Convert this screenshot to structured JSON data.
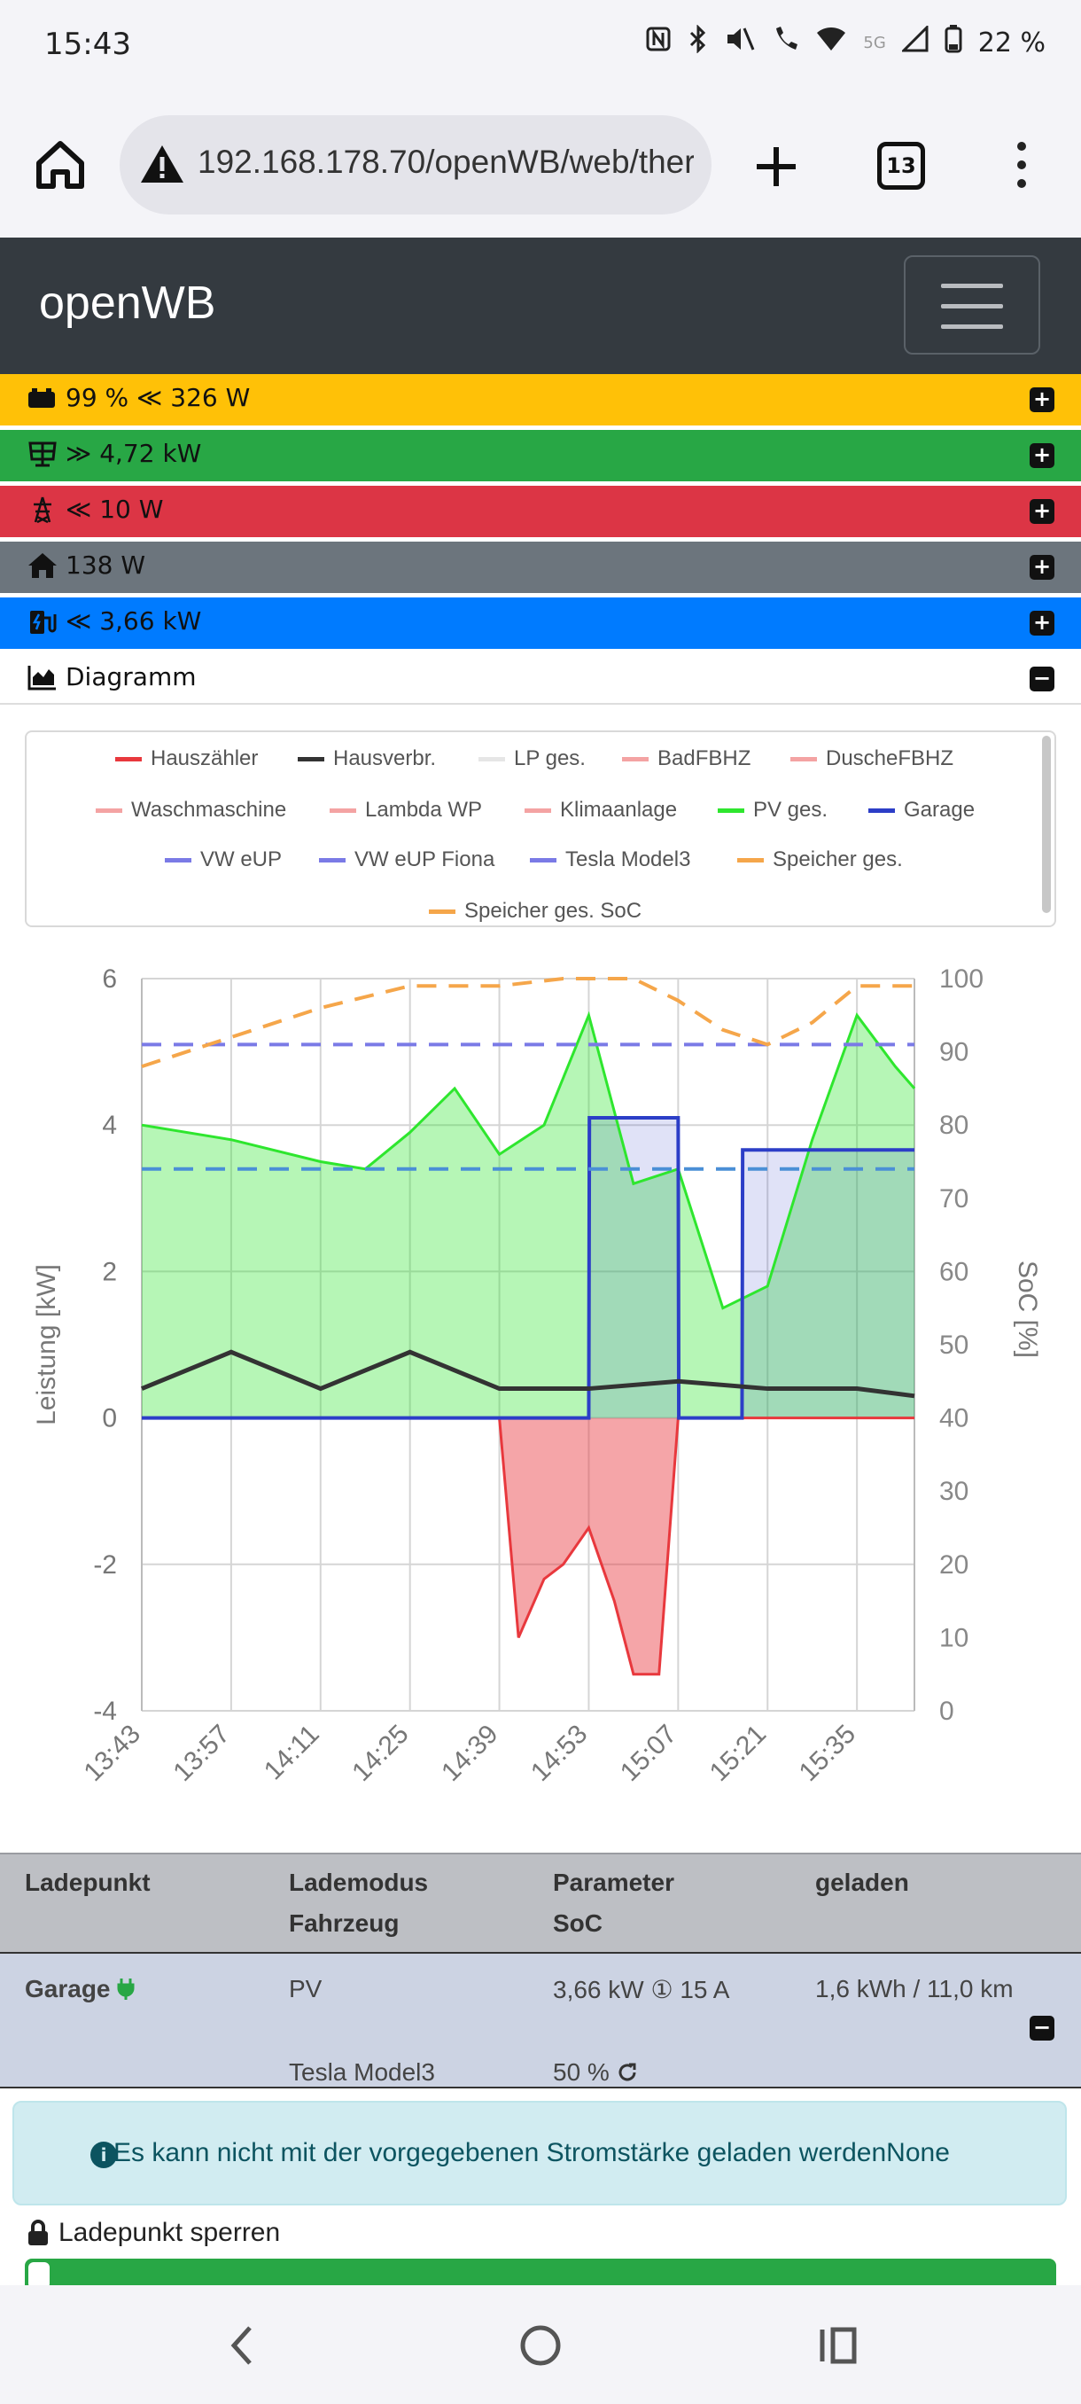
{
  "status_bar": {
    "time": "15:43",
    "network": "5G",
    "battery": "22 %"
  },
  "browser": {
    "url": "192.168.178.70/openWB/web/ther",
    "tab_count": "13"
  },
  "navbar": {
    "brand": "openWB"
  },
  "rows": [
    {
      "id": "battery",
      "text": "99 % ≪ 326 W",
      "color": "#ffc107",
      "icon": "battery-icon"
    },
    {
      "id": "pv",
      "text": "≫ 4,72 kW",
      "color": "#28a745",
      "icon": "solar-panel-icon"
    },
    {
      "id": "grid",
      "text": "≪ 10 W",
      "color": "#dc3545",
      "icon": "power-tower-icon"
    },
    {
      "id": "house",
      "text": "138 W",
      "color": "#6c757d",
      "icon": "home-icon"
    },
    {
      "id": "charge",
      "text": "≪ 3,66 kW",
      "color": "#007bff",
      "icon": "charging-station-icon"
    },
    {
      "id": "diagram",
      "text": "Diagramm",
      "color": "#ffffff",
      "icon": "chart-area-icon"
    }
  ],
  "chart_data": {
    "type": "area",
    "xlabel": "",
    "ylabel": "Leistung [kW]",
    "y2label": "SoC [%]",
    "ylim": [
      -4,
      6
    ],
    "y2lim": [
      0,
      100
    ],
    "x_ticks": [
      "13:43",
      "13:57",
      "14:11",
      "14:25",
      "14:39",
      "14:53",
      "15:07",
      "15:21",
      "15:35"
    ],
    "y_ticks": [
      "6",
      "4",
      "2",
      "0",
      "-2",
      "-4"
    ],
    "y2_ticks": [
      "100",
      "90",
      "80",
      "70",
      "60",
      "50",
      "40",
      "30",
      "20",
      "10",
      "0"
    ],
    "legend": [
      {
        "name": "Hauszähler",
        "color": "#e8383d"
      },
      {
        "name": "Hausverbr.",
        "color": "#333333"
      },
      {
        "name": "LP ges.",
        "color": "#e6e6e6"
      },
      {
        "name": "BadFBHZ",
        "color": "#f4a3a3"
      },
      {
        "name": "DuscheFBHZ",
        "color": "#f4a3a3"
      },
      {
        "name": "Waschmaschine",
        "color": "#f4a3a3"
      },
      {
        "name": "Lambda WP",
        "color": "#f4a3a3"
      },
      {
        "name": "Klimaanlage",
        "color": "#f4a3a3"
      },
      {
        "name": "PV ges.",
        "color": "#2ee62e"
      },
      {
        "name": "Garage",
        "color": "#2c3ec7"
      },
      {
        "name": "VW eUP",
        "color": "#7a7ae6"
      },
      {
        "name": "VW eUP Fiona",
        "color": "#7a7ae6"
      },
      {
        "name": "Tesla Model3",
        "color": "#7a7ae6"
      },
      {
        "name": "Speicher ges.",
        "color": "#f5a64a"
      },
      {
        "name": "Speicher ges. SoC",
        "color": "#f5a64a"
      }
    ],
    "series": [
      {
        "name": "PV ges.",
        "x": [
          0,
          14,
          28,
          35,
          42,
          49,
          56,
          63,
          70,
          77,
          84,
          91,
          98,
          105,
          112,
          118,
          121
        ],
        "values": [
          4.0,
          3.8,
          3.5,
          3.4,
          3.9,
          4.5,
          3.6,
          4.0,
          5.5,
          3.2,
          3.4,
          1.5,
          1.8,
          3.8,
          5.5,
          4.8,
          4.5
        ]
      },
      {
        "name": "Hauszähler",
        "x": [
          0,
          14,
          28,
          42,
          56,
          59,
          63,
          66,
          70,
          74,
          77,
          81,
          84,
          98,
          112,
          121
        ],
        "values": [
          0.0,
          0.0,
          0.0,
          0.0,
          0.0,
          -3.0,
          -2.2,
          -2.0,
          -1.5,
          -2.5,
          -3.5,
          -3.5,
          0.0,
          0.0,
          0.0,
          0.0
        ]
      },
      {
        "name": "Garage",
        "x": [
          0,
          70,
          70.1,
          84,
          84.1,
          94,
          94.1,
          121
        ],
        "values": [
          0.0,
          0.0,
          4.1,
          4.1,
          0.0,
          0.0,
          3.66,
          3.66
        ]
      },
      {
        "name": "Hausverbr.",
        "x": [
          0,
          14,
          28,
          42,
          56,
          70,
          84,
          98,
          112,
          121
        ],
        "values": [
          0.4,
          0.9,
          0.4,
          0.9,
          0.4,
          0.4,
          0.5,
          0.4,
          0.4,
          0.3
        ]
      },
      {
        "name": "Speicher ges. SoC",
        "x": [
          0,
          14,
          28,
          42,
          56,
          66,
          70,
          77,
          84,
          91,
          98,
          105,
          112,
          121
        ],
        "values": [
          88,
          92,
          96,
          99,
          99,
          100,
          100,
          100,
          97,
          93,
          91,
          94,
          99,
          99
        ]
      },
      {
        "name": "VW eUP",
        "x": [
          0,
          121
        ],
        "values": [
          5.1,
          5.1
        ]
      },
      {
        "name": "Tesla Model3",
        "x": [
          0,
          121
        ],
        "values": [
          3.4,
          3.4
        ]
      }
    ]
  },
  "table": {
    "headers": {
      "ladepunkt": "Ladepunkt",
      "lademodus": "Lademodus",
      "fahrzeug": "Fahrzeug",
      "parameter": "Parameter",
      "soc": "SoC",
      "geladen": "geladen"
    },
    "row": {
      "name": "Garage",
      "mode": "PV",
      "parameter": "3,66 kW ① 15 A",
      "geladen": "1,6 kWh / 11,0 km",
      "vehicle": "Tesla Model3",
      "soc": "50 %"
    }
  },
  "alert": {
    "text": "Es kann nicht mit der vorgegebenen Stromstärke geladen werdenNone"
  },
  "lock": {
    "label": "Ladepunkt sperren"
  }
}
